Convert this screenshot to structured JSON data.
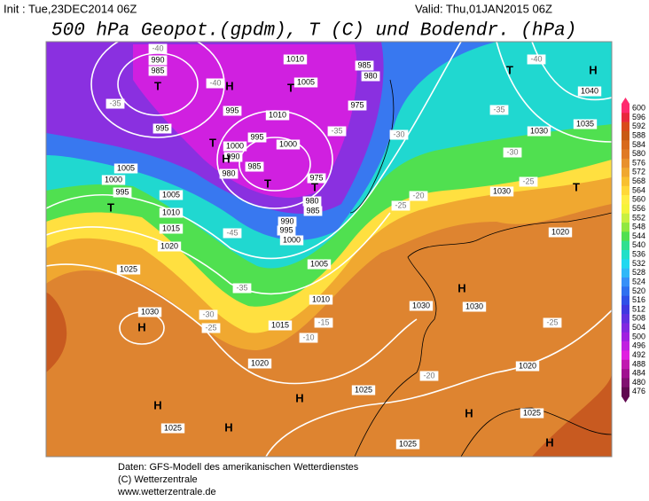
{
  "header": {
    "init": "Init : Tue,23DEC2014 06Z",
    "valid": "Valid: Thu,01JAN2015 06Z",
    "title": "500 hPa Geopot.(gpdm), T (C) und Bodendr. (hPa)"
  },
  "colorbar": {
    "levels": [
      600,
      596,
      592,
      588,
      584,
      580,
      576,
      572,
      568,
      564,
      560,
      556,
      552,
      548,
      544,
      540,
      536,
      532,
      528,
      524,
      520,
      516,
      512,
      508,
      504,
      500,
      496,
      492,
      488,
      484,
      480,
      476
    ],
    "colors": [
      "#ff2a6e",
      "#e8283c",
      "#d84a1a",
      "#c85a14",
      "#d86a1c",
      "#e07a24",
      "#e8902c",
      "#f0a830",
      "#f8c030",
      "#ffd838",
      "#ffee44",
      "#f4f43a",
      "#c8f040",
      "#90e840",
      "#50e050",
      "#30e090",
      "#20e0c8",
      "#20d8f0",
      "#30b8f8",
      "#3890f8",
      "#3070f0",
      "#3050e8",
      "#4038e0",
      "#6030e0",
      "#8028e0",
      "#a020e0",
      "#c020e0",
      "#e020e0",
      "#c018b0",
      "#a01090",
      "#801070",
      "#600850"
    ]
  },
  "map": {
    "isobar_labels": [
      "990",
      "985",
      "1010",
      "1005",
      "985",
      "980",
      "975",
      "995",
      "995",
      "1010",
      "995",
      "1000",
      "1000",
      "990",
      "985",
      "980",
      "975",
      "980",
      "985",
      "990",
      "995",
      "1000",
      "1005",
      "1000",
      "995",
      "1005",
      "1010",
      "1015",
      "1020",
      "1025",
      "1030",
      "1005",
      "1010",
      "1015",
      "1020",
      "1025",
      "1025",
      "1025",
      "1030",
      "1030",
      "1020",
      "1025",
      "1030",
      "1030",
      "1035",
      "1040",
      "1020"
    ],
    "temperature_labels": [
      "-40",
      "-35",
      "-40",
      "-35",
      "-30",
      "-40",
      "-35",
      "-30",
      "-25",
      "-25",
      "-20",
      "-45",
      "-35",
      "-30",
      "-25",
      "-15",
      "-10",
      "-20",
      "-25"
    ],
    "centers": [
      "T",
      "H",
      "T",
      "T",
      "H",
      "T",
      "H",
      "T",
      "T",
      "T",
      "T",
      "H",
      "H",
      "H",
      "H",
      "H",
      "H",
      "H"
    ]
  },
  "footer": [
    "Daten: GFS-Modell des amerikanischen Wetterdienstes",
    "(C) Wetterzentrale",
    "www.wetterzentrale.de"
  ]
}
